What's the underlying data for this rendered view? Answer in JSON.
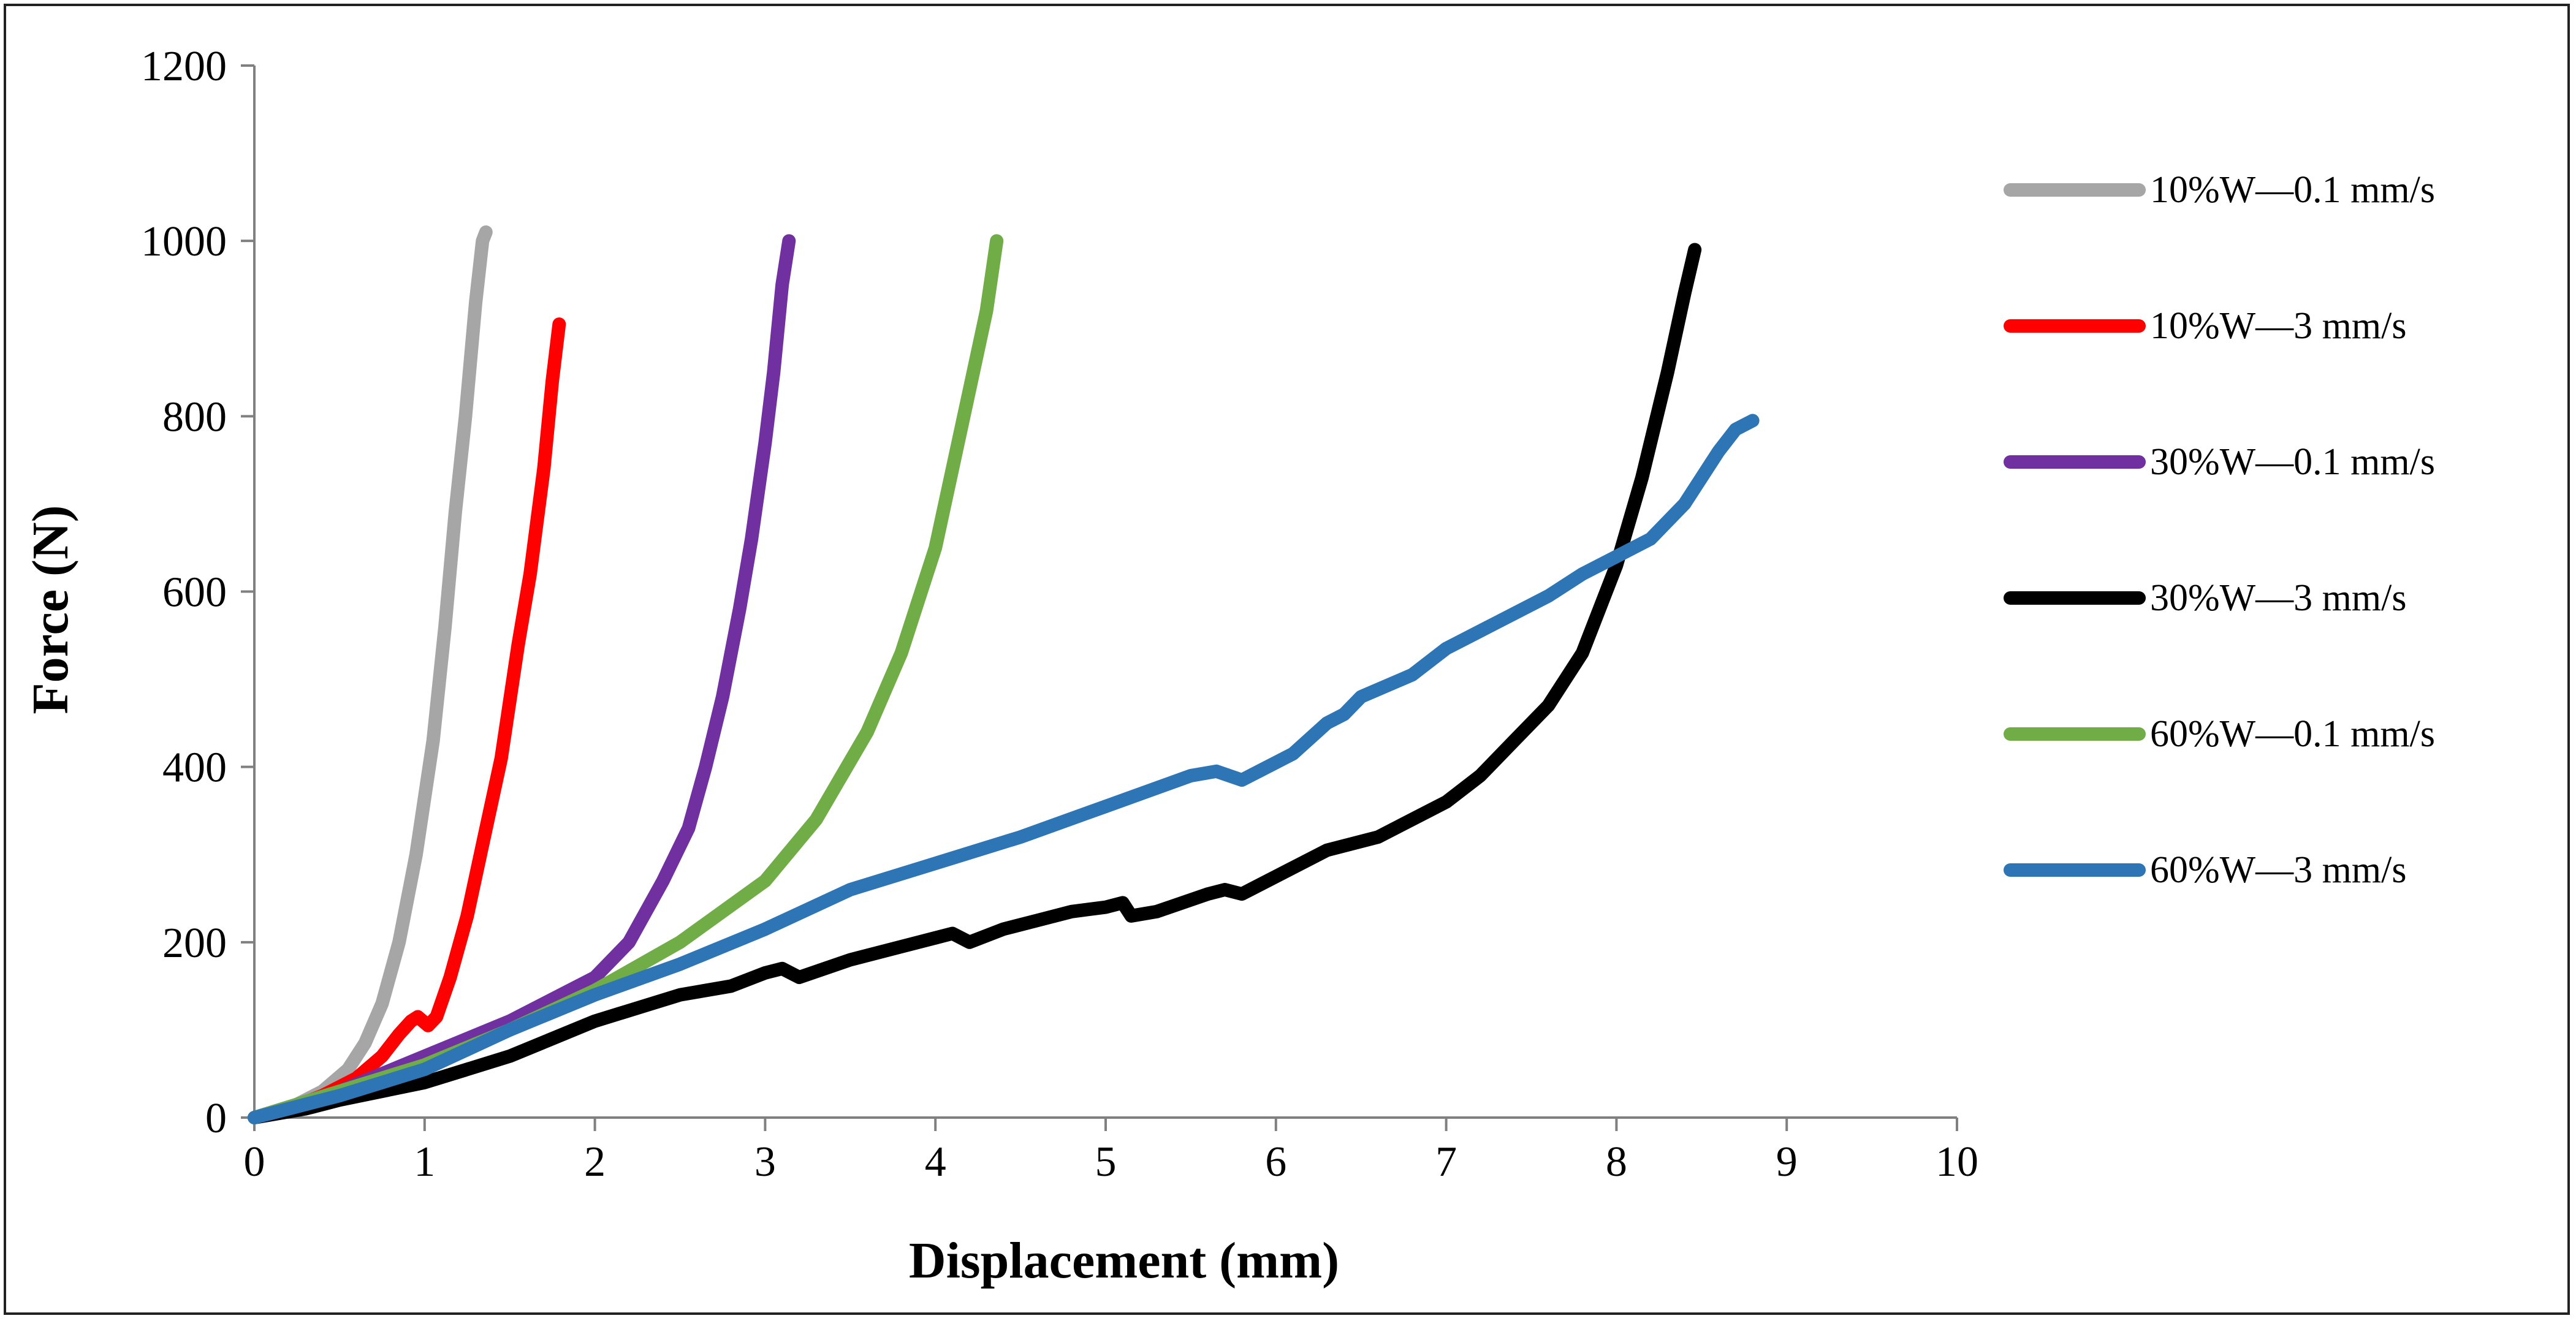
{
  "chart_data": {
    "type": "line",
    "title": "",
    "xlabel": "Displacement (mm)",
    "ylabel": "Force (N)",
    "xlim": [
      0,
      10
    ],
    "ylim": [
      0,
      1200
    ],
    "xticks": [
      0,
      1,
      2,
      3,
      4,
      5,
      6,
      7,
      8,
      9,
      10
    ],
    "yticks": [
      0,
      200,
      400,
      600,
      800,
      1000,
      1200
    ],
    "grid": false,
    "legend_position": "right",
    "series": [
      {
        "name": "10%W—0.1 mm/s",
        "color": "#A6A6A6",
        "x": [
          0,
          0.2,
          0.4,
          0.55,
          0.65,
          0.75,
          0.85,
          0.95,
          1.05,
          1.12,
          1.18,
          1.24,
          1.3,
          1.34,
          1.36
        ],
        "y": [
          0,
          10,
          30,
          55,
          85,
          130,
          200,
          300,
          430,
          560,
          690,
          800,
          930,
          1000,
          1010
        ]
      },
      {
        "name": "10%W—3 mm/s",
        "color": "#FF0000",
        "x": [
          0,
          0.2,
          0.4,
          0.6,
          0.75,
          0.85,
          0.92,
          0.96,
          1.02,
          1.07,
          1.15,
          1.25,
          1.35,
          1.45,
          1.55,
          1.62,
          1.7,
          1.75,
          1.79
        ],
        "y": [
          0,
          10,
          25,
          45,
          70,
          95,
          110,
          115,
          105,
          115,
          160,
          230,
          320,
          410,
          540,
          620,
          740,
          840,
          905
        ]
      },
      {
        "name": "30%W—0.1 mm/s",
        "color": "#7030A0",
        "x": [
          0,
          0.5,
          1.0,
          1.5,
          2.0,
          2.2,
          2.4,
          2.55,
          2.65,
          2.75,
          2.85,
          2.92,
          3.0,
          3.05,
          3.1,
          3.14
        ],
        "y": [
          0,
          30,
          70,
          110,
          160,
          200,
          270,
          330,
          400,
          480,
          580,
          660,
          770,
          850,
          950,
          1000
        ]
      },
      {
        "name": "30%W—3 mm/s",
        "color": "#000000",
        "x": [
          0,
          0.3,
          0.5,
          1.0,
          1.5,
          2.0,
          2.5,
          2.8,
          3.0,
          3.1,
          3.2,
          3.5,
          3.8,
          4.0,
          4.1,
          4.2,
          4.4,
          4.6,
          4.8,
          5.0,
          5.1,
          5.15,
          5.3,
          5.6,
          5.7,
          5.8,
          5.9,
          6.1,
          6.3,
          6.6,
          6.9,
          7.0,
          7.2,
          7.4,
          7.6,
          7.8,
          8.0,
          8.15,
          8.3,
          8.4,
          8.46
        ],
        "y": [
          0,
          10,
          20,
          40,
          70,
          110,
          140,
          150,
          165,
          170,
          160,
          180,
          195,
          205,
          210,
          200,
          215,
          225,
          235,
          240,
          245,
          230,
          235,
          255,
          260,
          255,
          265,
          285,
          305,
          320,
          350,
          360,
          390,
          430,
          470,
          530,
          630,
          730,
          850,
          940,
          990
        ]
      },
      {
        "name": "60%W—0.1 mm/s",
        "color": "#70AD47",
        "x": [
          0,
          0.5,
          1.0,
          1.5,
          2.0,
          2.5,
          3.0,
          3.3,
          3.6,
          3.8,
          4.0,
          4.1,
          4.2,
          4.3,
          4.36
        ],
        "y": [
          0,
          30,
          60,
          100,
          145,
          200,
          270,
          340,
          440,
          530,
          650,
          740,
          830,
          920,
          1000
        ]
      },
      {
        "name": "60%W—3 mm/s",
        "color": "#2E75B6",
        "x": [
          0,
          0.2,
          0.5,
          1.0,
          1.5,
          2.0,
          2.5,
          3.0,
          3.5,
          4.0,
          4.5,
          5.0,
          5.5,
          5.65,
          5.8,
          5.9,
          6.1,
          6.3,
          6.4,
          6.5,
          6.8,
          7.0,
          7.3,
          7.6,
          7.8,
          8.0,
          8.2,
          8.4,
          8.6,
          8.7,
          8.8
        ],
        "y": [
          0,
          10,
          25,
          55,
          100,
          140,
          175,
          215,
          260,
          290,
          320,
          355,
          390,
          395,
          385,
          395,
          415,
          450,
          460,
          480,
          505,
          535,
          565,
          595,
          620,
          640,
          660,
          700,
          760,
          785,
          795
        ]
      }
    ]
  }
}
